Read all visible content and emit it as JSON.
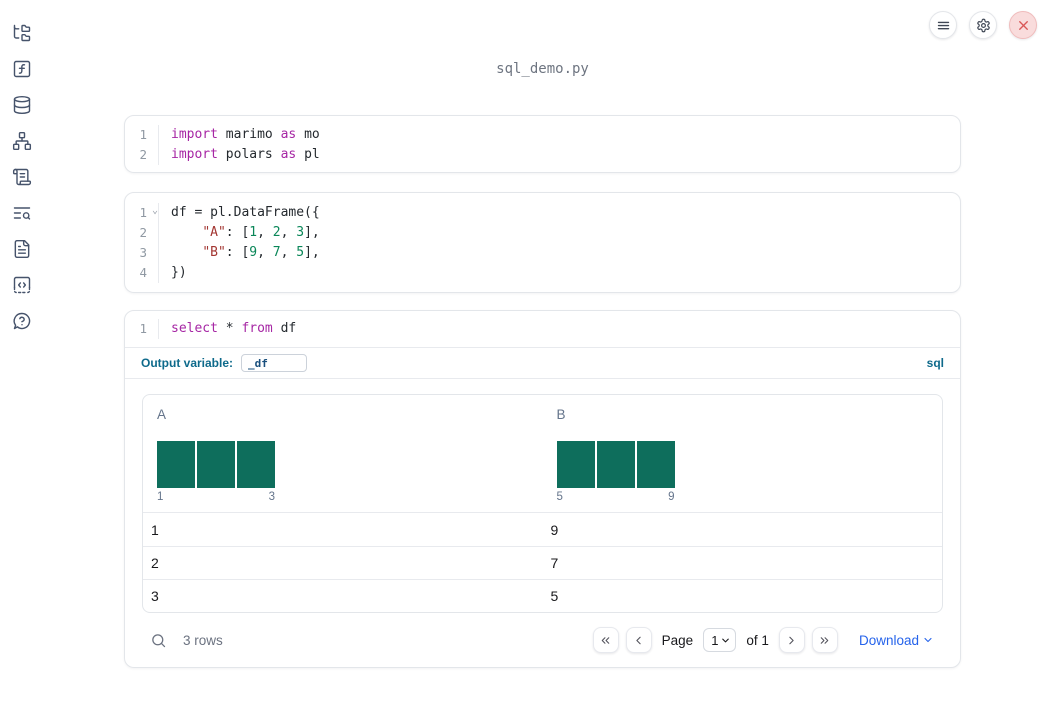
{
  "app": {
    "title": "sql_demo.py"
  },
  "topbar": {
    "buttons": [
      {
        "icon": "menu-icon",
        "label": "notebook menu"
      },
      {
        "icon": "gear-icon",
        "label": "settings"
      },
      {
        "icon": "close-icon",
        "label": "shutdown"
      }
    ]
  },
  "sidebar": {
    "items": [
      {
        "icon": "folder-tree-icon",
        "label": "file explorer"
      },
      {
        "icon": "function-square-icon",
        "label": "variables"
      },
      {
        "icon": "database-icon",
        "label": "data sources"
      },
      {
        "icon": "network-icon",
        "label": "dependency graph"
      },
      {
        "icon": "scroll-icon",
        "label": "logs"
      },
      {
        "icon": "list-search-icon",
        "label": "outline"
      },
      {
        "icon": "file-text-icon",
        "label": "documentation"
      },
      {
        "icon": "code-snippet-icon",
        "label": "snippets"
      },
      {
        "icon": "help-icon",
        "label": "help"
      }
    ]
  },
  "cells": [
    {
      "name": "imports-cell",
      "lines": [
        {
          "num": "1",
          "tokens": [
            {
              "c": "kw",
              "t": "import"
            },
            {
              "c": "tx",
              "t": " marimo "
            },
            {
              "c": "kw",
              "t": "as"
            },
            {
              "c": "tx",
              "t": " mo"
            }
          ]
        },
        {
          "num": "2",
          "tokens": [
            {
              "c": "kw",
              "t": "import"
            },
            {
              "c": "tx",
              "t": " polars "
            },
            {
              "c": "kw",
              "t": "as"
            },
            {
              "c": "tx",
              "t": " pl"
            }
          ]
        }
      ]
    },
    {
      "name": "dataframe-cell",
      "lines": [
        {
          "num": "1",
          "fold": true,
          "tokens": [
            {
              "c": "tx",
              "t": "df = pl.DataFrame({"
            }
          ]
        },
        {
          "num": "2",
          "tokens": [
            {
              "c": "tx",
              "t": "    "
            },
            {
              "c": "str",
              "t": "\"A\""
            },
            {
              "c": "tx",
              "t": ": ["
            },
            {
              "c": "num",
              "t": "1"
            },
            {
              "c": "tx",
              "t": ", "
            },
            {
              "c": "num",
              "t": "2"
            },
            {
              "c": "tx",
              "t": ", "
            },
            {
              "c": "num",
              "t": "3"
            },
            {
              "c": "tx",
              "t": "],"
            }
          ]
        },
        {
          "num": "3",
          "tokens": [
            {
              "c": "tx",
              "t": "    "
            },
            {
              "c": "str",
              "t": "\"B\""
            },
            {
              "c": "tx",
              "t": ": ["
            },
            {
              "c": "num",
              "t": "9"
            },
            {
              "c": "tx",
              "t": ", "
            },
            {
              "c": "num",
              "t": "7"
            },
            {
              "c": "tx",
              "t": ", "
            },
            {
              "c": "num",
              "t": "5"
            },
            {
              "c": "tx",
              "t": "],"
            }
          ]
        },
        {
          "num": "4",
          "tokens": [
            {
              "c": "tx",
              "t": "})"
            }
          ]
        }
      ]
    },
    {
      "name": "sql-cell",
      "lines": [
        {
          "num": "1",
          "tokens": [
            {
              "c": "kw",
              "t": "select"
            },
            {
              "c": "tx",
              "t": " * "
            },
            {
              "c": "kw",
              "t": "from"
            },
            {
              "c": "tx",
              "t": " df"
            }
          ]
        }
      ]
    }
  ],
  "sql_cell": {
    "output_variable_label": "Output variable:",
    "output_variable_value": "_df",
    "language_badge": "sql"
  },
  "table": {
    "columns": [
      {
        "name": "A",
        "histogram": {
          "bins": [
            1,
            1,
            1
          ],
          "min_label": "1",
          "max_label": "3"
        }
      },
      {
        "name": "B",
        "histogram": {
          "bins": [
            1,
            1,
            1
          ],
          "min_label": "5",
          "max_label": "9"
        }
      }
    ],
    "rows": [
      [
        "1",
        "9"
      ],
      [
        "2",
        "7"
      ],
      [
        "3",
        "5"
      ]
    ],
    "footer": {
      "row_count": "3 rows",
      "page_label": "Page",
      "page_value": "1",
      "of_label": "of 1",
      "download_label": "Download"
    }
  },
  "colors": {
    "histogram_bar": "#0e6e5c",
    "code_keyword": "#a626a4",
    "code_string": "#a33632",
    "code_number": "#098658",
    "sql_label_blue": "#0e6a8b",
    "download_blue": "#2563eb",
    "close_button_red": "#d95757"
  }
}
